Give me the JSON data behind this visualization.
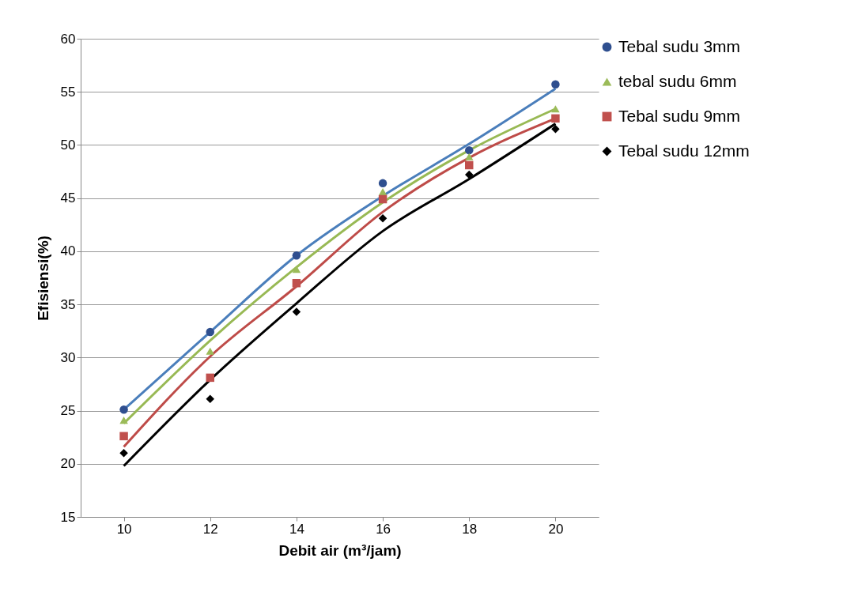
{
  "chart_data": {
    "type": "scatter",
    "xlabel": "Debit air (m³/jam)",
    "ylabel": "Efisiensi(%)",
    "x": [
      10,
      12,
      14,
      16,
      18,
      20
    ],
    "series": [
      {
        "name": "Tebal sudu 3mm",
        "color": "#2f4f8f",
        "marker": "circle",
        "values": [
          25.1,
          32.4,
          39.6,
          46.4,
          49.5,
          55.7
        ]
      },
      {
        "name": "tebal sudu 6mm",
        "color": "#9bbb59",
        "marker": "triangle",
        "values": [
          24.1,
          30.6,
          38.3,
          45.6,
          48.9,
          53.4
        ]
      },
      {
        "name": "Tebal sudu 9mm",
        "color": "#c0504d",
        "marker": "square",
        "values": [
          22.6,
          28.1,
          37.0,
          44.9,
          48.1,
          52.5
        ]
      },
      {
        "name": "Tebal sudu 12mm",
        "color": "#000000",
        "marker": "diamond",
        "values": [
          21.0,
          26.1,
          34.3,
          43.1,
          47.2,
          51.5
        ]
      },
      {
        "type": "line",
        "color": "#4a7ebb",
        "marker": "none",
        "x": [
          10,
          12,
          14,
          16,
          18,
          20
        ],
        "values": [
          25.1,
          32.4,
          39.6,
          45.2,
          50.1,
          55.3
        ]
      },
      {
        "type": "line",
        "color": "#98b954",
        "marker": "none",
        "x": [
          10,
          12,
          14,
          16,
          18,
          20
        ],
        "values": [
          23.8,
          31.6,
          38.5,
          44.6,
          49.5,
          53.4
        ]
      },
      {
        "type": "line",
        "color": "#be4b48",
        "marker": "none",
        "x": [
          10,
          12,
          14,
          16,
          18,
          20
        ],
        "values": [
          21.6,
          30.1,
          36.7,
          43.7,
          48.8,
          52.5
        ]
      },
      {
        "type": "line",
        "color": "#000000",
        "marker": "none",
        "x": [
          10,
          12,
          14,
          16,
          18,
          20
        ],
        "values": [
          19.8,
          27.9,
          35.1,
          41.9,
          46.8,
          52.0
        ]
      }
    ],
    "xlim": [
      9,
      21
    ],
    "xticks": [
      10,
      12,
      14,
      16,
      18,
      20
    ],
    "ylim": [
      15,
      60
    ],
    "yticks": [
      15,
      20,
      25,
      30,
      35,
      40,
      45,
      50,
      55,
      60
    ],
    "grid": "y",
    "legend": "right"
  }
}
